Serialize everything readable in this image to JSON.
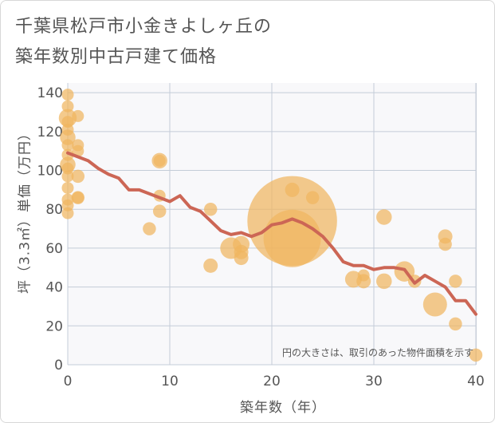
{
  "title": {
    "line1": "千葉県松戸市小金きよしヶ丘の",
    "line2": "築年数別中古戸建て価格"
  },
  "note": "円の大きさは、取引のあった物件面積を示す",
  "colors": {
    "bubble": "#f0b660",
    "line": "#cc6655",
    "grid": "#c4ccd8",
    "background": "#f8f8fa"
  },
  "chart_data": {
    "type": "scatter",
    "title": "千葉県松戸市小金きよしヶ丘の築年数別中古戸建て価格",
    "xlabel": "築年数（年）",
    "ylabel": "坪（3.3㎡）単価（万円）",
    "xlim": [
      0,
      40
    ],
    "ylim": [
      0,
      145
    ],
    "xticks": [
      0,
      10,
      20,
      30,
      40
    ],
    "yticks": [
      0,
      20,
      40,
      60,
      80,
      100,
      120,
      140
    ],
    "grid": true,
    "series": [
      {
        "type": "bubble",
        "points": [
          {
            "x": 0,
            "y": 139,
            "size": 1
          },
          {
            "x": 0,
            "y": 133,
            "size": 1
          },
          {
            "x": 0,
            "y": 127,
            "size": 1.5
          },
          {
            "x": 0,
            "y": 125,
            "size": 1
          },
          {
            "x": 0,
            "y": 121,
            "size": 1
          },
          {
            "x": 0,
            "y": 117,
            "size": 1.3
          },
          {
            "x": 0,
            "y": 113,
            "size": 1
          },
          {
            "x": 0,
            "y": 108,
            "size": 1
          },
          {
            "x": 0,
            "y": 103,
            "size": 1.3
          },
          {
            "x": 0,
            "y": 101,
            "size": 1
          },
          {
            "x": 0,
            "y": 97,
            "size": 1
          },
          {
            "x": 0,
            "y": 91,
            "size": 1
          },
          {
            "x": 0,
            "y": 85,
            "size": 1
          },
          {
            "x": 0,
            "y": 82,
            "size": 1
          },
          {
            "x": 0,
            "y": 78,
            "size": 1
          },
          {
            "x": 1,
            "y": 128,
            "size": 1
          },
          {
            "x": 1,
            "y": 113,
            "size": 1
          },
          {
            "x": 1,
            "y": 110,
            "size": 1
          },
          {
            "x": 1,
            "y": 97,
            "size": 1.1
          },
          {
            "x": 1,
            "y": 86,
            "size": 1.1
          },
          {
            "x": 1,
            "y": 86,
            "size": 1
          },
          {
            "x": 9,
            "y": 105,
            "size": 1.3
          },
          {
            "x": 9,
            "y": 105,
            "size": 1
          },
          {
            "x": 9,
            "y": 87,
            "size": 1
          },
          {
            "x": 9,
            "y": 79,
            "size": 1.1
          },
          {
            "x": 8,
            "y": 70,
            "size": 1.1
          },
          {
            "x": 14,
            "y": 80,
            "size": 1.1
          },
          {
            "x": 14,
            "y": 51,
            "size": 1.2
          },
          {
            "x": 16,
            "y": 60,
            "size": 1.8
          },
          {
            "x": 17,
            "y": 62,
            "size": 1.4
          },
          {
            "x": 17,
            "y": 58,
            "size": 1.2
          },
          {
            "x": 17,
            "y": 55,
            "size": 1.2
          },
          {
            "x": 22,
            "y": 90,
            "size": 1.2
          },
          {
            "x": 22,
            "y": 74,
            "size": 7.5
          },
          {
            "x": 22,
            "y": 65,
            "size": 4.8
          },
          {
            "x": 24,
            "y": 86,
            "size": 1.1
          },
          {
            "x": 28,
            "y": 44,
            "size": 1.4
          },
          {
            "x": 29,
            "y": 46,
            "size": 1
          },
          {
            "x": 29,
            "y": 43,
            "size": 1.2
          },
          {
            "x": 31,
            "y": 76,
            "size": 1.3
          },
          {
            "x": 31,
            "y": 43,
            "size": 1.3
          },
          {
            "x": 33,
            "y": 48,
            "size": 1.7
          },
          {
            "x": 34,
            "y": 43,
            "size": 1.1
          },
          {
            "x": 36,
            "y": 31,
            "size": 2.0
          },
          {
            "x": 37,
            "y": 66,
            "size": 1.2
          },
          {
            "x": 37,
            "y": 62,
            "size": 1.1
          },
          {
            "x": 38,
            "y": 43,
            "size": 1.1
          },
          {
            "x": 38,
            "y": 21,
            "size": 1.1
          },
          {
            "x": 40,
            "y": 5,
            "size": 1.1
          }
        ]
      },
      {
        "type": "line",
        "points": [
          {
            "x": 0,
            "y": 109
          },
          {
            "x": 1,
            "y": 107
          },
          {
            "x": 2,
            "y": 105
          },
          {
            "x": 3,
            "y": 101
          },
          {
            "x": 4,
            "y": 98
          },
          {
            "x": 5,
            "y": 96
          },
          {
            "x": 6,
            "y": 90
          },
          {
            "x": 7,
            "y": 90
          },
          {
            "x": 8,
            "y": 88
          },
          {
            "x": 9,
            "y": 86
          },
          {
            "x": 10,
            "y": 84
          },
          {
            "x": 11,
            "y": 87
          },
          {
            "x": 12,
            "y": 81
          },
          {
            "x": 13,
            "y": 79
          },
          {
            "x": 14,
            "y": 74
          },
          {
            "x": 15,
            "y": 69
          },
          {
            "x": 16,
            "y": 67
          },
          {
            "x": 17,
            "y": 68
          },
          {
            "x": 18,
            "y": 66
          },
          {
            "x": 19,
            "y": 68
          },
          {
            "x": 20,
            "y": 72
          },
          {
            "x": 21,
            "y": 73
          },
          {
            "x": 22,
            "y": 75
          },
          {
            "x": 23,
            "y": 73
          },
          {
            "x": 24,
            "y": 70
          },
          {
            "x": 25,
            "y": 66
          },
          {
            "x": 26,
            "y": 60
          },
          {
            "x": 27,
            "y": 53
          },
          {
            "x": 28,
            "y": 51
          },
          {
            "x": 29,
            "y": 51
          },
          {
            "x": 30,
            "y": 49
          },
          {
            "x": 31,
            "y": 50
          },
          {
            "x": 32,
            "y": 50
          },
          {
            "x": 33,
            "y": 49
          },
          {
            "x": 34,
            "y": 42
          },
          {
            "x": 35,
            "y": 46
          },
          {
            "x": 36,
            "y": 43
          },
          {
            "x": 37,
            "y": 40
          },
          {
            "x": 38,
            "y": 33
          },
          {
            "x": 39,
            "y": 33
          },
          {
            "x": 40,
            "y": 26
          }
        ]
      }
    ]
  }
}
